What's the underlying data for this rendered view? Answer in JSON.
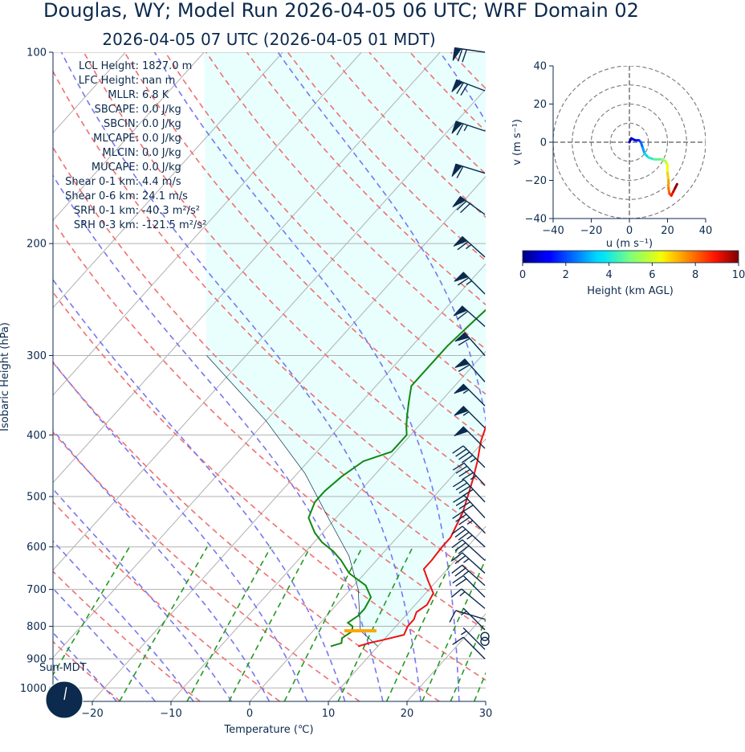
{
  "header": {
    "title": "Douglas, WY; Model Run 2026-04-05 06 UTC; WRF Domain 02",
    "subtitle": "2026-04-05 07 UTC  (2026-04-05 01 MDT)"
  },
  "colors": {
    "text": "#0c2a4d",
    "temperature": "#ee1111",
    "dewpoint": "#118811",
    "dry_adiabat": "#f07070",
    "moist_adiabat": "#7777ee",
    "mixing_ratio": "#229922",
    "isotherm": "#b0b0b0",
    "cape_shading": "#e8fffe",
    "lcl_marker": "#ffa500",
    "barb": "#0c2a4d"
  },
  "chart_data": [
    {
      "type": "line",
      "subtype": "skew-T log-P sounding",
      "xlabel": "Temperature (℃)",
      "ylabel": "Isobaric Height (hPa)",
      "xlim": [
        -25,
        30
      ],
      "ylim": [
        1050,
        100
      ],
      "y_scale": "log",
      "x_ticks": [
        -20,
        -10,
        0,
        10,
        20,
        30
      ],
      "y_ticks": [
        100,
        200,
        300,
        400,
        500,
        600,
        700,
        800,
        900,
        1000
      ],
      "grid": true,
      "stats": [
        "LCL Height: 1827.0 m",
        "LFC Height: nan m",
        "MLLR: 6.8 K",
        "SBCAPE: 0.0 J/kg",
        "SBCIN: 0.0 J/kg",
        "MLCAPE: 0.0 J/kg",
        "MLCIN: 0.0 J/kg",
        "MUCAPE: 0.0 J/kg",
        "Shear 0-1 km: 4.4 m/s",
        "Shear 0-6 km: 24.1 m/s",
        "SRH 0-1 km: -40.3 m²/s²",
        "SRH 0-3 km: -121.5 m²/s²"
      ],
      "series": [
        {
          "key": "temperature",
          "points": [
            [
              7.5,
              860
            ],
            [
              8.5,
              850
            ],
            [
              10,
              840
            ],
            [
              12,
              825
            ],
            [
              11.5,
              800
            ],
            [
              11.5,
              780
            ],
            [
              11,
              760
            ],
            [
              11.5,
              740
            ],
            [
              11,
              710
            ],
            [
              9,
              680
            ],
            [
              7,
              650
            ],
            [
              7,
              630
            ],
            [
              6.8,
              600
            ],
            [
              6.8,
              580
            ],
            [
              6.3,
              560
            ],
            [
              5.5,
              530
            ],
            [
              4.3,
              500
            ],
            [
              3,
              470
            ],
            [
              1.5,
              440
            ],
            [
              -0.3,
              410
            ],
            [
              -1.8,
              380
            ],
            [
              -3.5,
              350
            ],
            [
              -5,
              325
            ],
            [
              -6.5,
              305
            ],
            [
              -6.2,
              285
            ],
            [
              -5,
              262
            ],
            [
              -4.8,
              244
            ],
            [
              -5,
              236
            ],
            [
              -2.5,
              222
            ],
            [
              2,
              208
            ],
            [
              7,
              194
            ],
            [
              12,
              181
            ],
            [
              16,
              171
            ],
            [
              19,
              163
            ],
            [
              22,
              150
            ],
            [
              23,
              140
            ],
            [
              24,
              130
            ],
            [
              25.5,
              120
            ],
            [
              27,
              110
            ],
            [
              28.5,
              100
            ]
          ]
        },
        {
          "key": "dewpoint",
          "points": [
            [
              4,
              860
            ],
            [
              5,
              850
            ],
            [
              4.5,
              835
            ],
            [
              5,
              815
            ],
            [
              4.5,
              800
            ],
            [
              3.5,
              790
            ],
            [
              4,
              770
            ],
            [
              4,
              750
            ],
            [
              3.5,
              720
            ],
            [
              1.5,
              690
            ],
            [
              -2,
              660
            ],
            [
              -4.5,
              630
            ],
            [
              -6.5,
              610
            ],
            [
              -9,
              590
            ],
            [
              -11,
              570
            ],
            [
              -13.5,
              540
            ],
            [
              -14.5,
              510
            ],
            [
              -14.5,
              490
            ],
            [
              -14,
              465
            ],
            [
              -13,
              440
            ],
            [
              -10.5,
              425
            ],
            [
              -10.5,
              400
            ],
            [
              -11.5,
              388
            ],
            [
              -12.5,
              375
            ],
            [
              -14,
              355
            ],
            [
              -15.5,
              335
            ],
            [
              -15.5,
              315
            ],
            [
              -15.5,
              290
            ],
            [
              -15,
              265
            ],
            [
              -14.5,
              245
            ],
            [
              -14,
              225
            ],
            [
              -13.5,
              210
            ],
            [
              -13.5,
              200
            ],
            [
              -13,
              187
            ],
            [
              -13.5,
              175
            ],
            [
              -14,
              168
            ],
            [
              -13,
              161
            ],
            [
              -11,
              152
            ],
            [
              -9,
              140
            ],
            [
              -7,
              126
            ],
            [
              -5,
              114
            ],
            [
              -3.5,
              105
            ],
            [
              -3,
              100
            ]
          ]
        },
        {
          "key": "parcel",
          "points": [
            [
              10,
              860
            ],
            [
              6,
              813
            ],
            [
              1,
              700
            ],
            [
              -4,
              620
            ],
            [
              -11,
              540
            ],
            [
              -19,
              460
            ],
            [
              -30,
              380
            ],
            [
              -45,
              300
            ]
          ]
        }
      ],
      "lcl": {
        "pressure_hpa": 813,
        "temperature_c": 6
      },
      "wind_barbs": [
        {
          "p": 100,
          "u": 70,
          "v": -10
        },
        {
          "p": 115,
          "u": 65,
          "v": -25
        },
        {
          "p": 133,
          "u": 60,
          "v": -20
        },
        {
          "p": 155,
          "u": 58,
          "v": -18
        },
        {
          "p": 180,
          "u": 55,
          "v": -40
        },
        {
          "p": 210,
          "u": 50,
          "v": -45
        },
        {
          "p": 240,
          "u": 45,
          "v": -45
        },
        {
          "p": 270,
          "u": 45,
          "v": -40
        },
        {
          "p": 300,
          "u": 40,
          "v": -45
        },
        {
          "p": 330,
          "u": 40,
          "v": -45
        },
        {
          "p": 360,
          "u": 40,
          "v": -40
        },
        {
          "p": 390,
          "u": 38,
          "v": -38
        },
        {
          "p": 420,
          "u": 35,
          "v": -35
        },
        {
          "p": 450,
          "u": 32,
          "v": -32
        },
        {
          "p": 480,
          "u": 30,
          "v": -32
        },
        {
          "p": 510,
          "u": 28,
          "v": -30
        },
        {
          "p": 540,
          "u": 26,
          "v": -28
        },
        {
          "p": 570,
          "u": 25,
          "v": -25
        },
        {
          "p": 600,
          "u": 24,
          "v": -22
        },
        {
          "p": 630,
          "u": 22,
          "v": -20
        },
        {
          "p": 660,
          "u": 20,
          "v": -18
        },
        {
          "p": 690,
          "u": 18,
          "v": -16
        },
        {
          "p": 720,
          "u": 15,
          "v": -15
        },
        {
          "p": 750,
          "u": 12,
          "v": -10
        },
        {
          "p": 780,
          "u": 10,
          "v": -3
        },
        {
          "p": 810,
          "u": 2,
          "v": -2
        },
        {
          "p": 830,
          "u": 1,
          "v": 1
        },
        {
          "p": 845,
          "u": 1,
          "v": 1
        },
        {
          "p": 870,
          "u": 5,
          "v": -5
        },
        {
          "p": 900,
          "u": 6,
          "v": -6
        }
      ],
      "sun_clock": {
        "label": "Sun-MDT",
        "hour_hand_deg": 10
      }
    },
    {
      "type": "line",
      "subtype": "hodograph",
      "xlabel": "u (m s⁻¹)",
      "ylabel": "v (m s⁻¹)",
      "xlim": [
        -40,
        40
      ],
      "ylim": [
        -40,
        40
      ],
      "x_ticks": [
        -40,
        -20,
        0,
        20,
        40
      ],
      "y_ticks": [
        -40,
        -20,
        0,
        20,
        40
      ],
      "range_rings": [
        10,
        20,
        30,
        40
      ],
      "colorbar": {
        "label": "Height (km AGL)",
        "min": 0,
        "max": 10,
        "ticks": [
          0,
          2,
          4,
          6,
          8,
          10
        ]
      },
      "points": [
        [
          0,
          0,
          0
        ],
        [
          1,
          2,
          0.3
        ],
        [
          3,
          1,
          0.7
        ],
        [
          5,
          1,
          1.2
        ],
        [
          6,
          0,
          1.6
        ],
        [
          7,
          -3,
          2.2
        ],
        [
          8,
          -6,
          2.8
        ],
        [
          10,
          -8,
          3.4
        ],
        [
          13,
          -9,
          4.0
        ],
        [
          17,
          -9,
          4.6
        ],
        [
          19,
          -10,
          5.2
        ],
        [
          20,
          -12,
          5.8
        ],
        [
          20,
          -16,
          6.4
        ],
        [
          20.5,
          -20,
          6.9
        ],
        [
          20.5,
          -24,
          7.4
        ],
        [
          21,
          -27,
          7.9
        ],
        [
          22,
          -28,
          8.4
        ],
        [
          23,
          -26,
          8.9
        ],
        [
          24,
          -24,
          9.4
        ],
        [
          25,
          -22,
          9.9
        ]
      ]
    }
  ]
}
